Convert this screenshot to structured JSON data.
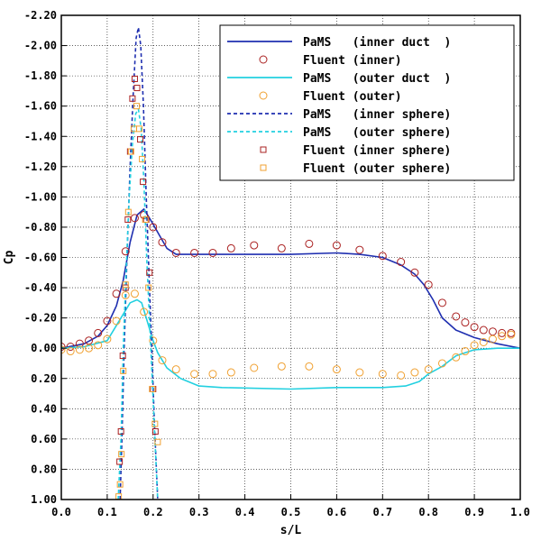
{
  "chart_data": {
    "type": "line",
    "title": "",
    "xlabel": "s/L",
    "ylabel": "Cp",
    "xlim": [
      0.0,
      1.0
    ],
    "ylim": [
      1.0,
      -2.2
    ],
    "y_inverted": true,
    "grid": true,
    "legend_position": "top-right",
    "x_ticks": [
      "0.0",
      "0.1",
      "0.2",
      "0.3",
      "0.4",
      "0.5",
      "0.6",
      "0.7",
      "0.8",
      "0.9",
      "1.0"
    ],
    "y_ticks": [
      "-2.20",
      "-2.00",
      "-1.80",
      "-1.60",
      "-1.40",
      "-1.20",
      "-1.00",
      "-0.80",
      "-0.60",
      "-0.40",
      "-0.20",
      "0.00",
      "0.20",
      "0.40",
      "0.60",
      "0.80",
      "1.00"
    ],
    "series": [
      {
        "name": "PaMS   (inner duct  )",
        "kind": "line",
        "color": "#1f2fb0",
        "dash": "solid",
        "points": [
          [
            0,
            0.0
          ],
          [
            0.05,
            -0.03
          ],
          [
            0.08,
            -0.08
          ],
          [
            0.1,
            -0.15
          ],
          [
            0.12,
            -0.28
          ],
          [
            0.135,
            -0.45
          ],
          [
            0.15,
            -0.7
          ],
          [
            0.165,
            -0.88
          ],
          [
            0.18,
            -0.92
          ],
          [
            0.19,
            -0.87
          ],
          [
            0.2,
            -0.82
          ],
          [
            0.215,
            -0.74
          ],
          [
            0.23,
            -0.66
          ],
          [
            0.25,
            -0.62
          ],
          [
            0.3,
            -0.62
          ],
          [
            0.4,
            -0.62
          ],
          [
            0.5,
            -0.62
          ],
          [
            0.6,
            -0.63
          ],
          [
            0.65,
            -0.62
          ],
          [
            0.7,
            -0.6
          ],
          [
            0.74,
            -0.55
          ],
          [
            0.77,
            -0.49
          ],
          [
            0.79,
            -0.42
          ],
          [
            0.81,
            -0.32
          ],
          [
            0.83,
            -0.2
          ],
          [
            0.86,
            -0.12
          ],
          [
            0.9,
            -0.07
          ],
          [
            0.95,
            -0.03
          ],
          [
            1.0,
            0.0
          ]
        ]
      },
      {
        "name": "Fluent (inner)",
        "kind": "marker",
        "marker": "circle",
        "color": "#aa2020",
        "points": [
          [
            0.0,
            -0.01
          ],
          [
            0.02,
            -0.01
          ],
          [
            0.04,
            -0.03
          ],
          [
            0.06,
            -0.05
          ],
          [
            0.08,
            -0.1
          ],
          [
            0.1,
            -0.18
          ],
          [
            0.12,
            -0.36
          ],
          [
            0.14,
            -0.64
          ],
          [
            0.16,
            -0.86
          ],
          [
            0.18,
            -0.88
          ],
          [
            0.2,
            -0.8
          ],
          [
            0.22,
            -0.7
          ],
          [
            0.25,
            -0.63
          ],
          [
            0.29,
            -0.63
          ],
          [
            0.33,
            -0.63
          ],
          [
            0.37,
            -0.66
          ],
          [
            0.42,
            -0.68
          ],
          [
            0.48,
            -0.66
          ],
          [
            0.54,
            -0.69
          ],
          [
            0.6,
            -0.68
          ],
          [
            0.65,
            -0.65
          ],
          [
            0.7,
            -0.61
          ],
          [
            0.74,
            -0.57
          ],
          [
            0.77,
            -0.5
          ],
          [
            0.8,
            -0.42
          ],
          [
            0.83,
            -0.3
          ],
          [
            0.86,
            -0.21
          ],
          [
            0.88,
            -0.17
          ],
          [
            0.9,
            -0.14
          ],
          [
            0.92,
            -0.12
          ],
          [
            0.94,
            -0.11
          ],
          [
            0.96,
            -0.1
          ],
          [
            0.98,
            -0.1
          ]
        ]
      },
      {
        "name": "PaMS   (outer duct  )",
        "kind": "line",
        "color": "#22d0e0",
        "dash": "solid",
        "points": [
          [
            0,
            0.0
          ],
          [
            0.05,
            -0.01
          ],
          [
            0.1,
            -0.05
          ],
          [
            0.13,
            -0.2
          ],
          [
            0.15,
            -0.3
          ],
          [
            0.165,
            -0.32
          ],
          [
            0.175,
            -0.3
          ],
          [
            0.185,
            -0.2
          ],
          [
            0.2,
            -0.05
          ],
          [
            0.21,
            0.03
          ],
          [
            0.23,
            0.13
          ],
          [
            0.26,
            0.2
          ],
          [
            0.3,
            0.25
          ],
          [
            0.35,
            0.26
          ],
          [
            0.5,
            0.27
          ],
          [
            0.6,
            0.26
          ],
          [
            0.7,
            0.26
          ],
          [
            0.75,
            0.25
          ],
          [
            0.78,
            0.22
          ],
          [
            0.8,
            0.17
          ],
          [
            0.83,
            0.12
          ],
          [
            0.86,
            0.05
          ],
          [
            0.9,
            0.01
          ],
          [
            0.95,
            0.0
          ],
          [
            1.0,
            0.0
          ]
        ]
      },
      {
        "name": "Fluent (outer)",
        "kind": "marker",
        "marker": "circle",
        "color": "#f0a030",
        "points": [
          [
            0.0,
            0.01
          ],
          [
            0.02,
            0.02
          ],
          [
            0.04,
            0.01
          ],
          [
            0.06,
            0.0
          ],
          [
            0.08,
            -0.02
          ],
          [
            0.1,
            -0.06
          ],
          [
            0.12,
            -0.18
          ],
          [
            0.14,
            -0.35
          ],
          [
            0.16,
            -0.36
          ],
          [
            0.18,
            -0.24
          ],
          [
            0.2,
            -0.05
          ],
          [
            0.22,
            0.08
          ],
          [
            0.25,
            0.14
          ],
          [
            0.29,
            0.17
          ],
          [
            0.33,
            0.17
          ],
          [
            0.37,
            0.16
          ],
          [
            0.42,
            0.13
          ],
          [
            0.48,
            0.12
          ],
          [
            0.54,
            0.12
          ],
          [
            0.6,
            0.14
          ],
          [
            0.65,
            0.16
          ],
          [
            0.7,
            0.17
          ],
          [
            0.74,
            0.18
          ],
          [
            0.77,
            0.16
          ],
          [
            0.8,
            0.14
          ],
          [
            0.83,
            0.1
          ],
          [
            0.86,
            0.06
          ],
          [
            0.88,
            0.02
          ],
          [
            0.9,
            -0.02
          ],
          [
            0.92,
            -0.04
          ],
          [
            0.94,
            -0.06
          ],
          [
            0.96,
            -0.08
          ],
          [
            0.98,
            -0.09
          ]
        ]
      },
      {
        "name": "PaMS   (inner sphere)",
        "kind": "line",
        "color": "#1f2fb0",
        "dash": "dashed",
        "points": [
          [
            0.128,
            1.0
          ],
          [
            0.132,
            0.6
          ],
          [
            0.137,
            0.0
          ],
          [
            0.143,
            -0.6
          ],
          [
            0.15,
            -1.2
          ],
          [
            0.157,
            -1.7
          ],
          [
            0.163,
            -2.05
          ],
          [
            0.168,
            -2.12
          ],
          [
            0.173,
            -2.0
          ],
          [
            0.179,
            -1.6
          ],
          [
            0.185,
            -1.0
          ],
          [
            0.191,
            -0.5
          ],
          [
            0.197,
            0.0
          ],
          [
            0.203,
            0.5
          ],
          [
            0.21,
            1.0
          ]
        ]
      },
      {
        "name": "PaMS   (outer sphere)",
        "kind": "line",
        "color": "#22d0e0",
        "dash": "dashed",
        "points": [
          [
            0.124,
            1.0
          ],
          [
            0.13,
            0.6
          ],
          [
            0.135,
            0.0
          ],
          [
            0.141,
            -0.5
          ],
          [
            0.148,
            -1.0
          ],
          [
            0.155,
            -1.35
          ],
          [
            0.162,
            -1.55
          ],
          [
            0.168,
            -1.58
          ],
          [
            0.174,
            -1.45
          ],
          [
            0.18,
            -1.1
          ],
          [
            0.186,
            -0.6
          ],
          [
            0.192,
            -0.2
          ],
          [
            0.198,
            0.2
          ],
          [
            0.204,
            0.6
          ],
          [
            0.21,
            1.0
          ]
        ]
      },
      {
        "name": "Fluent (inner sphere)",
        "kind": "marker",
        "marker": "square",
        "color": "#aa2020",
        "points": [
          [
            0.127,
            0.75
          ],
          [
            0.13,
            0.55
          ],
          [
            0.134,
            0.05
          ],
          [
            0.14,
            -0.4
          ],
          [
            0.145,
            -0.85
          ],
          [
            0.15,
            -1.3
          ],
          [
            0.155,
            -1.65
          ],
          [
            0.16,
            -1.78
          ],
          [
            0.165,
            -1.72
          ],
          [
            0.172,
            -1.38
          ],
          [
            0.178,
            -1.1
          ],
          [
            0.185,
            -0.85
          ],
          [
            0.192,
            -0.5
          ],
          [
            0.2,
            0.27
          ],
          [
            0.205,
            0.55
          ]
        ]
      },
      {
        "name": "Fluent (outer sphere)",
        "kind": "marker",
        "marker": "square",
        "color": "#f0a030",
        "points": [
          [
            0.125,
            0.98
          ],
          [
            0.128,
            0.9
          ],
          [
            0.131,
            0.7
          ],
          [
            0.135,
            0.15
          ],
          [
            0.14,
            -0.42
          ],
          [
            0.146,
            -0.9
          ],
          [
            0.152,
            -1.3
          ],
          [
            0.158,
            -1.45
          ],
          [
            0.164,
            -1.6
          ],
          [
            0.17,
            -1.45
          ],
          [
            0.176,
            -1.25
          ],
          [
            0.183,
            -0.85
          ],
          [
            0.19,
            -0.4
          ],
          [
            0.198,
            0.27
          ],
          [
            0.204,
            0.5
          ],
          [
            0.21,
            0.62
          ]
        ]
      }
    ]
  }
}
